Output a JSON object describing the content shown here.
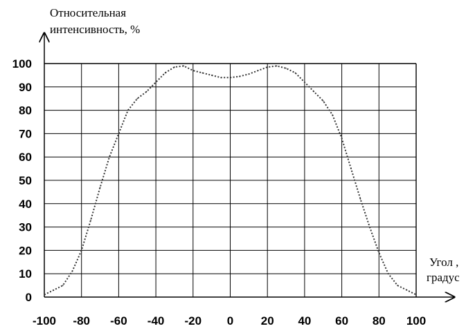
{
  "chart_data": {
    "type": "line",
    "title": "",
    "ylabel_line1": "Относительная",
    "ylabel_line2": "интенсивность, %",
    "xlabel_line1": "Угол ,",
    "xlabel_line2": "градус",
    "xlim": [
      -100,
      100
    ],
    "ylim": [
      0,
      100
    ],
    "x_ticks": [
      -100,
      -80,
      -60,
      -40,
      -20,
      0,
      20,
      40,
      60,
      80,
      100
    ],
    "y_ticks": [
      0,
      10,
      20,
      30,
      40,
      50,
      60,
      70,
      80,
      90,
      100
    ],
    "grid": true,
    "line_style": "dotted",
    "series": [
      {
        "x": [
          -100,
          -95,
          -90,
          -85,
          -80,
          -75,
          -70,
          -65,
          -60,
          -55,
          -50,
          -45,
          -40,
          -35,
          -30,
          -25,
          -20,
          -15,
          -10,
          -5,
          0,
          5,
          10,
          15,
          20,
          25,
          30,
          35,
          40,
          45,
          50,
          55,
          60,
          65,
          70,
          75,
          80,
          85,
          90,
          95,
          100
        ],
        "y": [
          1,
          3,
          5,
          11,
          20,
          33,
          47,
          60,
          70,
          80,
          85,
          88,
          92,
          96,
          98.5,
          99,
          97,
          96,
          95,
          94,
          94,
          94.5,
          95.5,
          97,
          98.5,
          99,
          98,
          96,
          92,
          88,
          84,
          78,
          68,
          55,
          42,
          30,
          19,
          10,
          5,
          3,
          1
        ]
      }
    ]
  }
}
